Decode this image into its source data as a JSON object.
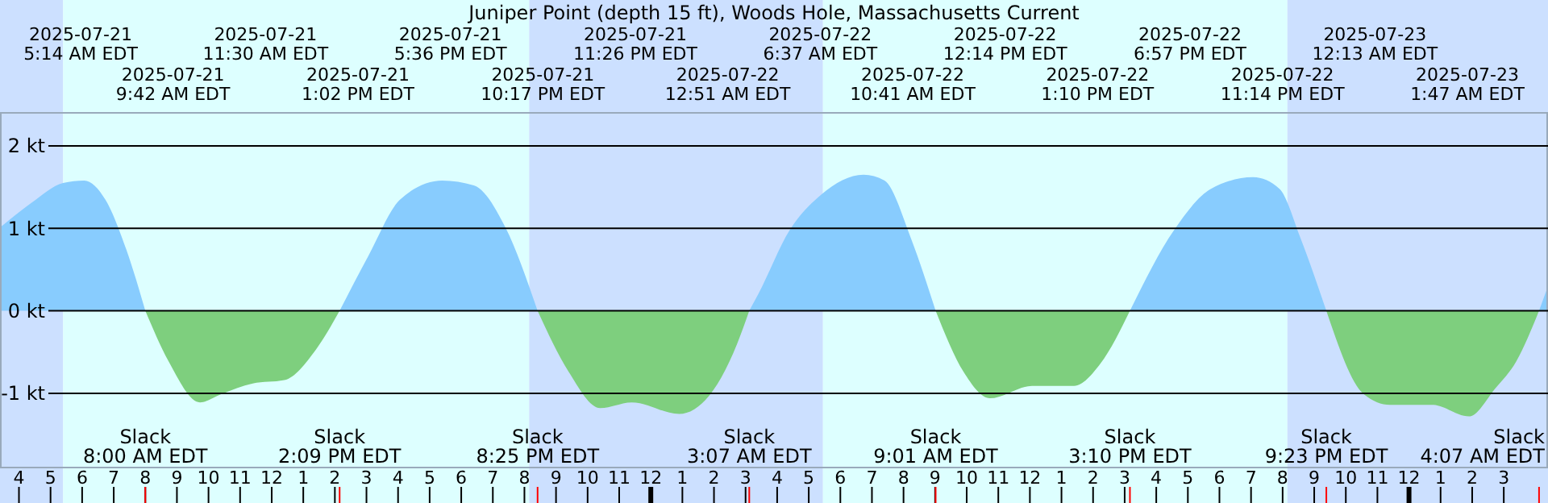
{
  "chart_data": {
    "type": "area",
    "title": "Juniper Point (depth 15 ft), Woods Hole, Massachusetts Current",
    "x": [
      "2025-07-21T03:24",
      "2025-07-21T04:24",
      "2025-07-21T05:24",
      "2025-07-21T06:04",
      "2025-07-21T06:44",
      "2025-07-21T07:24",
      "2025-07-21T08:00",
      "2025-07-21T08:44",
      "2025-07-21T09:44",
      "2025-07-21T10:24",
      "2025-07-21T11:24",
      "2025-07-21T12:24",
      "2025-07-21T13:24",
      "2025-07-21T14:09",
      "2025-07-21T15:04",
      "2025-07-21T16:04",
      "2025-07-21T17:24",
      "2025-07-21T18:24",
      "2025-07-21T19:24",
      "2025-07-21T20:25",
      "2025-07-21T21:24",
      "2025-07-21T22:24",
      "2025-07-21T23:24",
      "2025-07-22T00:54",
      "2025-07-22T01:44",
      "2025-07-22T02:44",
      "2025-07-22T03:07",
      "2025-07-22T03:24",
      "2025-07-22T04:24",
      "2025-07-22T05:24",
      "2025-07-22T06:44",
      "2025-07-22T07:24",
      "2025-07-22T08:14",
      "2025-07-22T09:01",
      "2025-07-22T09:54",
      "2025-07-22T10:44",
      "2025-07-22T12:04",
      "2025-07-22T13:24",
      "2025-07-22T14:14",
      "2025-07-22T15:10",
      "2025-07-22T16:34",
      "2025-07-22T17:44",
      "2025-07-22T19:04",
      "2025-07-22T19:54",
      "2025-07-22T20:34",
      "2025-07-22T21:23",
      "2025-07-22T22:34",
      "2025-07-22T23:24",
      "2025-07-23T00:44",
      "2025-07-23T01:54",
      "2025-07-23T02:44",
      "2025-07-23T03:24",
      "2025-07-23T04:07",
      "2025-07-23T04:24"
    ],
    "series": [
      {
        "color": "#88ccfe",
        "values": [
          1.01,
          1.31,
          1.55,
          1.58,
          1.35,
          0.74,
          0,
          null,
          null,
          null,
          null,
          null,
          null,
          0,
          0.67,
          1.35,
          1.58,
          1.52,
          1.01,
          0,
          null,
          null,
          null,
          null,
          null,
          null,
          0,
          0.2,
          0.98,
          1.41,
          1.65,
          1.58,
          0.88,
          0,
          null,
          null,
          null,
          null,
          null,
          0,
          0.98,
          1.48,
          1.62,
          1.48,
          0.88,
          0,
          null,
          null,
          null,
          null,
          null,
          null,
          0,
          0.3
        ]
      },
      {
        "color": "#7ecf7e",
        "values": [
          null,
          null,
          null,
          null,
          null,
          null,
          0,
          -0.61,
          -1.11,
          -1.01,
          -0.88,
          -0.84,
          -0.47,
          0,
          null,
          null,
          null,
          null,
          null,
          0,
          -0.74,
          -1.18,
          -1.11,
          -1.25,
          -1.08,
          -0.4,
          0,
          null,
          null,
          null,
          null,
          null,
          null,
          0,
          -0.74,
          -1.06,
          -0.91,
          -0.91,
          -0.64,
          0,
          null,
          null,
          null,
          null,
          null,
          0,
          -1.01,
          -1.14,
          -1.14,
          -1.28,
          -0.94,
          -0.61,
          0,
          null
        ]
      }
    ],
    "xlim": [
      "2025-07-21T03:24",
      "2025-07-23T04:24"
    ],
    "xticks": [
      {
        "value": "2025-07-21T04:00",
        "label": "4"
      },
      {
        "value": "2025-07-21T05:00",
        "label": "5"
      },
      {
        "value": "2025-07-21T06:00",
        "label": "6"
      },
      {
        "value": "2025-07-21T07:00",
        "label": "7"
      },
      {
        "value": "2025-07-21T08:00",
        "label": "8"
      },
      {
        "value": "2025-07-21T09:00",
        "label": "9"
      },
      {
        "value": "2025-07-21T10:00",
        "label": "10"
      },
      {
        "value": "2025-07-21T11:00",
        "label": "11"
      },
      {
        "value": "2025-07-21T12:00",
        "label": "12"
      },
      {
        "value": "2025-07-21T13:00",
        "label": "1"
      },
      {
        "value": "2025-07-21T14:00",
        "label": "2"
      },
      {
        "value": "2025-07-21T15:00",
        "label": "3"
      },
      {
        "value": "2025-07-21T16:00",
        "label": "4"
      },
      {
        "value": "2025-07-21T17:00",
        "label": "5"
      },
      {
        "value": "2025-07-21T18:00",
        "label": "6"
      },
      {
        "value": "2025-07-21T19:00",
        "label": "7"
      },
      {
        "value": "2025-07-21T20:00",
        "label": "8"
      },
      {
        "value": "2025-07-21T21:00",
        "label": "9"
      },
      {
        "value": "2025-07-21T22:00",
        "label": "10"
      },
      {
        "value": "2025-07-21T23:00",
        "label": "11"
      },
      {
        "value": "2025-07-22T00:00",
        "label": "12"
      },
      {
        "value": "2025-07-22T01:00",
        "label": "1"
      },
      {
        "value": "2025-07-22T02:00",
        "label": "2"
      },
      {
        "value": "2025-07-22T03:00",
        "label": "3"
      },
      {
        "value": "2025-07-22T04:00",
        "label": "4"
      },
      {
        "value": "2025-07-22T05:00",
        "label": "5"
      },
      {
        "value": "2025-07-22T06:00",
        "label": "6"
      },
      {
        "value": "2025-07-22T07:00",
        "label": "7"
      },
      {
        "value": "2025-07-22T08:00",
        "label": "8"
      },
      {
        "value": "2025-07-22T09:00",
        "label": "9"
      },
      {
        "value": "2025-07-22T10:00",
        "label": "10"
      },
      {
        "value": "2025-07-22T11:00",
        "label": "11"
      },
      {
        "value": "2025-07-22T12:00",
        "label": "12"
      },
      {
        "value": "2025-07-22T13:00",
        "label": "1"
      },
      {
        "value": "2025-07-22T14:00",
        "label": "2"
      },
      {
        "value": "2025-07-22T15:00",
        "label": "3"
      },
      {
        "value": "2025-07-22T16:00",
        "label": "4"
      },
      {
        "value": "2025-07-22T17:00",
        "label": "5"
      },
      {
        "value": "2025-07-22T18:00",
        "label": "6"
      },
      {
        "value": "2025-07-22T19:00",
        "label": "7"
      },
      {
        "value": "2025-07-22T20:00",
        "label": "8"
      },
      {
        "value": "2025-07-22T21:00",
        "label": "9"
      },
      {
        "value": "2025-07-22T22:00",
        "label": "10"
      },
      {
        "value": "2025-07-22T23:00",
        "label": "11"
      },
      {
        "value": "2025-07-23T00:00",
        "label": "12"
      },
      {
        "value": "2025-07-23T01:00",
        "label": "1"
      },
      {
        "value": "2025-07-23T02:00",
        "label": "2"
      },
      {
        "value": "2025-07-23T03:00",
        "label": "3"
      }
    ],
    "ylim": [
      -1.9,
      2.4
    ],
    "yticks": [
      {
        "value": -1,
        "label": "-1 kt"
      },
      {
        "value": 0,
        "label": "0 kt"
      },
      {
        "value": 1,
        "label": "1 kt"
      },
      {
        "value": 2,
        "label": "2 kt"
      }
    ],
    "grid": "y",
    "bands": [
      {
        "axis": "x",
        "from": "2025-07-21T03:24",
        "to": "2025-07-21T05:24",
        "color": "#cce0ff"
      },
      {
        "axis": "x",
        "from": "2025-07-21T05:24",
        "to": "2025-07-21T20:09",
        "color": "#ddffff"
      },
      {
        "axis": "x",
        "from": "2025-07-21T20:09",
        "to": "2025-07-22T05:27",
        "color": "#cce0ff"
      },
      {
        "axis": "x",
        "from": "2025-07-22T05:27",
        "to": "2025-07-22T20:09",
        "color": "#ddffff"
      },
      {
        "axis": "x",
        "from": "2025-07-22T20:09",
        "to": "2025-07-23T04:24",
        "color": "#cce0ff"
      }
    ],
    "annotations": [
      "2025-07-21\n5:14 AM EDT",
      "2025-07-21\n9:42 AM EDT",
      "2025-07-21\n11:30 AM EDT",
      "2025-07-21\n1:02 PM EDT",
      "2025-07-21\n5:36 PM EDT",
      "2025-07-21\n10:17 PM EDT",
      "2025-07-21\n11:26 PM EDT",
      "2025-07-22\n12:51 AM EDT",
      "2025-07-22\n6:37 AM EDT",
      "2025-07-22\n10:41 AM EDT",
      "2025-07-22\n12:14 PM EDT",
      "2025-07-22\n1:10 PM EDT",
      "2025-07-22\n6:57 PM EDT",
      "2025-07-22\n11:14 PM EDT",
      "2025-07-23\n12:13 AM EDT",
      "2025-07-23\n1:47 AM EDT"
    ],
    "ref_lines": [
      {
        "axis": "x",
        "value": "2025-07-21T08:00",
        "label": "Slack\n8:00 AM EDT",
        "color": "#ff0000"
      },
      {
        "axis": "x",
        "value": "2025-07-21T14:09",
        "label": "Slack\n2:09 PM EDT",
        "color": "#ff0000"
      },
      {
        "axis": "x",
        "value": "2025-07-21T20:25",
        "label": "Slack\n8:25 PM EDT",
        "color": "#ff0000"
      },
      {
        "axis": "x",
        "value": "2025-07-22T03:07",
        "label": "Slack\n3:07 AM EDT",
        "color": "#ff0000"
      },
      {
        "axis": "x",
        "value": "2025-07-22T09:01",
        "label": "Slack\n9:01 AM EDT",
        "color": "#ff0000"
      },
      {
        "axis": "x",
        "value": "2025-07-22T15:10",
        "label": "Slack\n3:10 PM EDT",
        "color": "#ff0000"
      },
      {
        "axis": "x",
        "value": "2025-07-22T21:23",
        "label": "Slack\n9:23 PM EDT",
        "color": "#ff0000"
      },
      {
        "axis": "x",
        "value": "2025-07-23T04:07",
        "label": "Slack\n4:07 AM EDT",
        "color": "#ff0000"
      }
    ]
  }
}
